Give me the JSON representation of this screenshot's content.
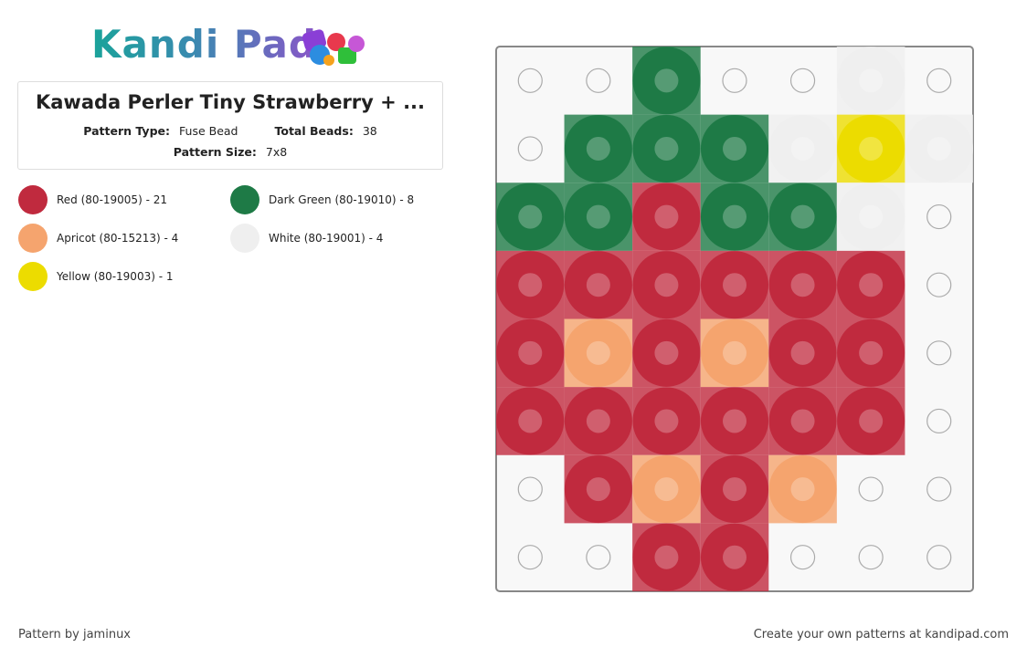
{
  "header": {
    "logo": "Kandi Pad"
  },
  "pattern": {
    "title": "Kawada Perler Tiny Strawberry + ...",
    "type_label": "Pattern Type:",
    "type": "Fuse Bead",
    "total_label": "Total Beads:",
    "total": "38",
    "size_label": "Pattern Size:",
    "size": "7x8"
  },
  "legend": [
    {
      "color": "#c02a3e",
      "label": "Red (80-19005) - 21"
    },
    {
      "color": "#1e7a46",
      "label": "Dark Green (80-19010) - 8"
    },
    {
      "color": "#f5a46e",
      "label": "Apricot (80-15213) - 4"
    },
    {
      "color": "#efefef",
      "label": "White (80-19001) - 4"
    },
    {
      "color": "#ecdc00",
      "label": "Yellow (80-19003) - 1"
    }
  ],
  "grid": [
    [
      null,
      null,
      "#1e7a46",
      null,
      null,
      "#efefef",
      null
    ],
    [
      null,
      "#1e7a46",
      "#1e7a46",
      "#1e7a46",
      "#efefef",
      "#ecdc00",
      "#efefef"
    ],
    [
      "#1e7a46",
      "#1e7a46",
      "#c02a3e",
      "#1e7a46",
      "#1e7a46",
      "#efefef",
      null
    ],
    [
      "#c02a3e",
      "#c02a3e",
      "#c02a3e",
      "#c02a3e",
      "#c02a3e",
      "#c02a3e",
      null
    ],
    [
      "#c02a3e",
      "#f5a46e",
      "#c02a3e",
      "#f5a46e",
      "#c02a3e",
      "#c02a3e",
      null
    ],
    [
      "#c02a3e",
      "#c02a3e",
      "#c02a3e",
      "#c02a3e",
      "#c02a3e",
      "#c02a3e",
      null
    ],
    [
      null,
      "#c02a3e",
      "#f5a46e",
      "#c02a3e",
      "#f5a46e",
      null,
      null
    ],
    [
      null,
      null,
      "#c02a3e",
      "#c02a3e",
      null,
      null,
      null
    ]
  ],
  "footer": {
    "left": "Pattern by jaminux",
    "right": "Create your own patterns at kandipad.com"
  }
}
